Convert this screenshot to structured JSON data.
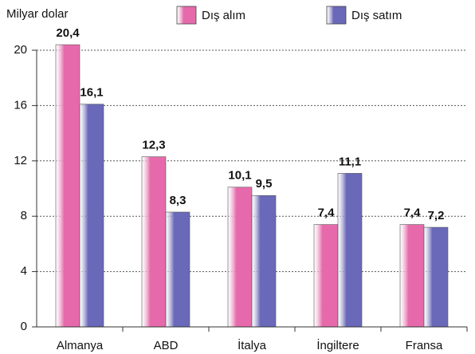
{
  "chart_data": {
    "type": "bar",
    "y_label": "Milyar dolar",
    "categories": [
      "Almanya",
      "ABD",
      "İtalya",
      "İngiltere",
      "Fransa"
    ],
    "series": [
      {
        "name": "Dış alım",
        "color": "#e66aab",
        "values": [
          20.4,
          12.3,
          10.1,
          7.4,
          7.4
        ],
        "value_labels": [
          "20,4",
          "12,3",
          "10,1",
          "7,4",
          "7,4"
        ]
      },
      {
        "name": "Dış satım",
        "color": "#6a68b8",
        "values": [
          16.1,
          8.3,
          9.5,
          11.1,
          7.2
        ],
        "value_labels": [
          "16,1",
          "8,3",
          "9,5",
          "11,1",
          "7,2"
        ]
      }
    ],
    "ylim": [
      0,
      20
    ],
    "yticks": [
      0,
      4,
      8,
      12,
      16,
      20
    ],
    "grid": true,
    "legend": "top"
  }
}
